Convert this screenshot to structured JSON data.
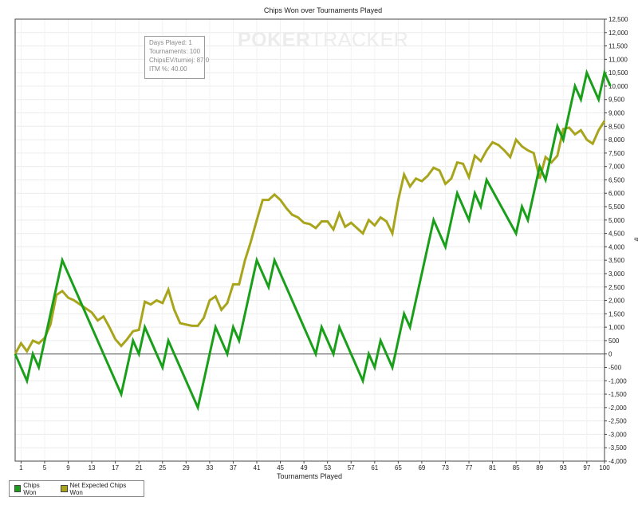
{
  "watermark": {
    "bold": "POKER",
    "thin": "TRACKER"
  },
  "stats": {
    "lines": [
      "Days Played: 1",
      "Tournaments: 100",
      "ChipsEV/turniej: 87.0",
      "ITM %: 40.00"
    ]
  },
  "legend": {
    "placement": "bottom-left"
  },
  "chart_data": {
    "type": "line",
    "title": "Chips Won over Tournaments Played",
    "xlabel": "Tournaments Played",
    "ylabel": "#",
    "xlim": [
      0,
      100
    ],
    "ylim": [
      -4000,
      12500
    ],
    "x_ticks": [
      1,
      5,
      9,
      13,
      17,
      21,
      25,
      29,
      33,
      37,
      41,
      45,
      49,
      53,
      57,
      61,
      65,
      69,
      73,
      77,
      81,
      85,
      89,
      93,
      97,
      100
    ],
    "y_ticks": [
      12500,
      12000,
      11500,
      11000,
      10500,
      10000,
      9500,
      9000,
      8500,
      8000,
      7500,
      7000,
      6500,
      6000,
      5500,
      5000,
      4500,
      4000,
      3500,
      3000,
      2500,
      2000,
      1500,
      1000,
      500,
      0,
      -500,
      -1000,
      -1500,
      -2000,
      -2500,
      -3000,
      -3500,
      -4000
    ],
    "grid": true,
    "series": [
      {
        "name": "Chips Won",
        "color": "#1a9f1a",
        "points": [
          [
            0,
            0
          ],
          [
            2,
            -1000
          ],
          [
            3,
            0
          ],
          [
            4,
            -500
          ],
          [
            8,
            3500
          ],
          [
            18,
            -1500
          ],
          [
            20,
            500
          ],
          [
            21,
            0
          ],
          [
            22,
            1000
          ],
          [
            25,
            -500
          ],
          [
            26,
            500
          ],
          [
            31,
            -2000
          ],
          [
            34,
            1000
          ],
          [
            36,
            0
          ],
          [
            37,
            1000
          ],
          [
            38,
            500
          ],
          [
            41,
            3500
          ],
          [
            43,
            2500
          ],
          [
            44,
            3500
          ],
          [
            51,
            0
          ],
          [
            52,
            1000
          ],
          [
            54,
            0
          ],
          [
            55,
            1000
          ],
          [
            59,
            -1000
          ],
          [
            60,
            0
          ],
          [
            61,
            -500
          ],
          [
            62,
            500
          ],
          [
            64,
            -500
          ],
          [
            66,
            1500
          ],
          [
            67,
            1000
          ],
          [
            71,
            5000
          ],
          [
            73,
            4000
          ],
          [
            75,
            6000
          ],
          [
            77,
            5000
          ],
          [
            78,
            6000
          ],
          [
            79,
            5500
          ],
          [
            80,
            6500
          ],
          [
            85,
            4500
          ],
          [
            86,
            5500
          ],
          [
            87,
            5000
          ],
          [
            89,
            7000
          ],
          [
            90,
            6500
          ],
          [
            92,
            8500
          ],
          [
            93,
            8000
          ],
          [
            95,
            10000
          ],
          [
            96,
            9500
          ],
          [
            97,
            10500
          ],
          [
            99,
            9500
          ],
          [
            100,
            10500
          ],
          [
            101,
            10000
          ]
        ]
      },
      {
        "name": "Net Expected Chips Won",
        "color": "#a8a51c",
        "points": [
          [
            0,
            0
          ],
          [
            1,
            400
          ],
          [
            2,
            100
          ],
          [
            3,
            500
          ],
          [
            4,
            400
          ],
          [
            5,
            600
          ],
          [
            6,
            1100
          ],
          [
            7,
            2200
          ],
          [
            8,
            2350
          ],
          [
            9,
            2100
          ],
          [
            10,
            2000
          ],
          [
            11,
            1850
          ],
          [
            12,
            1700
          ],
          [
            13,
            1550
          ],
          [
            14,
            1250
          ],
          [
            15,
            1400
          ],
          [
            16,
            1000
          ],
          [
            17,
            550
          ],
          [
            18,
            300
          ],
          [
            19,
            550
          ],
          [
            20,
            850
          ],
          [
            21,
            900
          ],
          [
            22,
            1950
          ],
          [
            23,
            1850
          ],
          [
            24,
            2000
          ],
          [
            25,
            1900
          ],
          [
            26,
            2400
          ],
          [
            27,
            1650
          ],
          [
            28,
            1150
          ],
          [
            29,
            1100
          ],
          [
            30,
            1050
          ],
          [
            31,
            1050
          ],
          [
            32,
            1350
          ],
          [
            33,
            2000
          ],
          [
            34,
            2150
          ],
          [
            35,
            1650
          ],
          [
            36,
            1900
          ],
          [
            37,
            2600
          ],
          [
            38,
            2600
          ],
          [
            39,
            3500
          ],
          [
            40,
            4200
          ],
          [
            41,
            5000
          ],
          [
            42,
            5750
          ],
          [
            43,
            5750
          ],
          [
            44,
            5950
          ],
          [
            45,
            5750
          ],
          [
            46,
            5450
          ],
          [
            47,
            5200
          ],
          [
            48,
            5100
          ],
          [
            49,
            4900
          ],
          [
            50,
            4850
          ],
          [
            51,
            4700
          ],
          [
            52,
            4950
          ],
          [
            53,
            4950
          ],
          [
            54,
            4650
          ],
          [
            55,
            5250
          ],
          [
            56,
            4750
          ],
          [
            57,
            4900
          ],
          [
            58,
            4700
          ],
          [
            59,
            4500
          ],
          [
            60,
            5000
          ],
          [
            61,
            4800
          ],
          [
            62,
            5100
          ],
          [
            63,
            4950
          ],
          [
            64,
            4500
          ],
          [
            65,
            5750
          ],
          [
            66,
            6700
          ],
          [
            67,
            6250
          ],
          [
            68,
            6550
          ],
          [
            69,
            6450
          ],
          [
            70,
            6650
          ],
          [
            71,
            6950
          ],
          [
            72,
            6850
          ],
          [
            73,
            6350
          ],
          [
            74,
            6550
          ],
          [
            75,
            7150
          ],
          [
            76,
            7100
          ],
          [
            77,
            6600
          ],
          [
            78,
            7400
          ],
          [
            79,
            7200
          ],
          [
            80,
            7600
          ],
          [
            81,
            7900
          ],
          [
            82,
            7800
          ],
          [
            83,
            7600
          ],
          [
            84,
            7350
          ],
          [
            85,
            8000
          ],
          [
            86,
            7750
          ],
          [
            87,
            7600
          ],
          [
            88,
            7500
          ],
          [
            89,
            6550
          ],
          [
            90,
            7350
          ],
          [
            91,
            7150
          ],
          [
            92,
            7400
          ],
          [
            93,
            8400
          ],
          [
            94,
            8450
          ],
          [
            95,
            8200
          ],
          [
            96,
            8350
          ],
          [
            97,
            8000
          ],
          [
            98,
            7850
          ],
          [
            99,
            8350
          ],
          [
            100,
            8700
          ]
        ]
      }
    ]
  }
}
